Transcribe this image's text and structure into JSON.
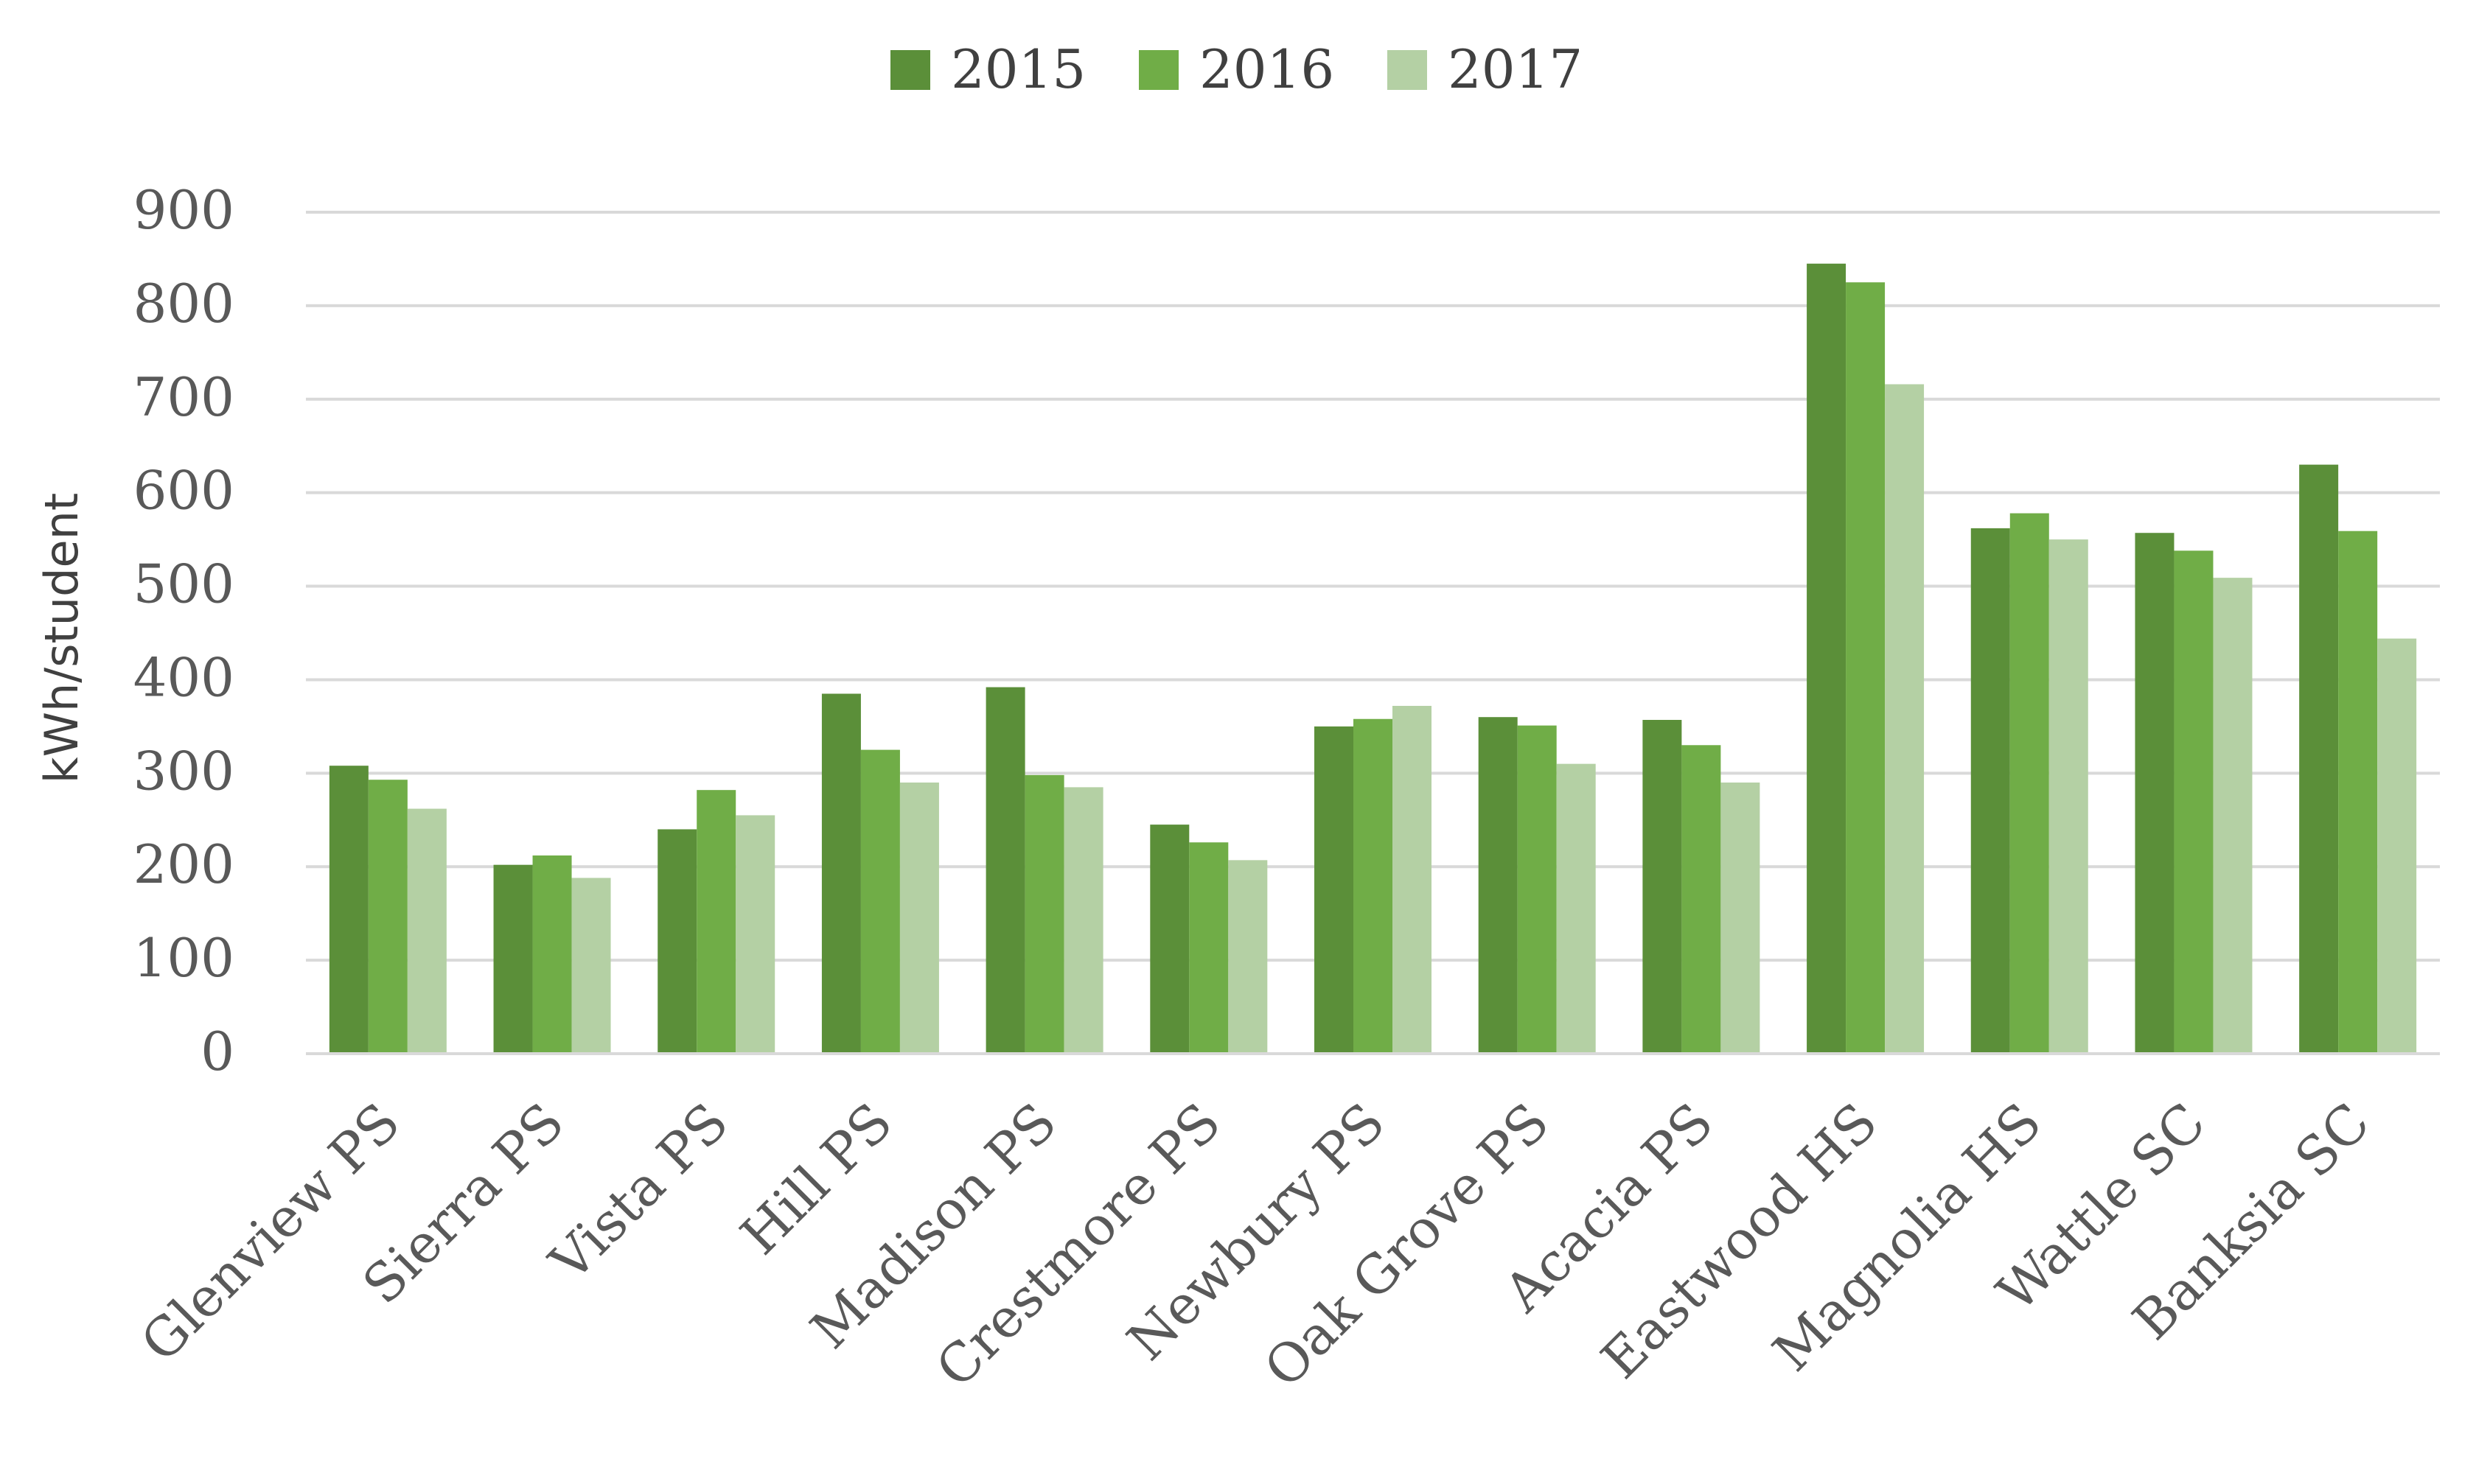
{
  "chart_data": {
    "type": "bar",
    "title": "",
    "xlabel": "",
    "ylabel": "kWh/student",
    "ylim": [
      0,
      900
    ],
    "yticks": [
      0,
      100,
      200,
      300,
      400,
      500,
      600,
      700,
      800,
      900
    ],
    "grid": true,
    "legend_position": "top-center",
    "categories": [
      "Glenview PS",
      "Sierra PS",
      "Vista PS",
      "Hill PS",
      "Madison PS",
      "Crestmore PS",
      "Newbury PS",
      "Oak Grove PS",
      "Acacia PS",
      "Eastwood HS",
      "Magnolia HS",
      "Wattle SC",
      "Banksia SC"
    ],
    "series": [
      {
        "name": "2015",
        "color": "#5b8f39",
        "values": [
          308,
          202,
          240,
          385,
          392,
          245,
          350,
          360,
          357,
          845,
          562,
          557,
          630
        ]
      },
      {
        "name": "2016",
        "color": "#70ad47",
        "values": [
          293,
          212,
          282,
          325,
          298,
          226,
          358,
          351,
          330,
          825,
          578,
          538,
          559
        ]
      },
      {
        "name": "2017",
        "color": "#b4d0a4",
        "values": [
          262,
          188,
          255,
          290,
          285,
          207,
          372,
          310,
          290,
          716,
          550,
          509,
          444
        ]
      }
    ]
  }
}
